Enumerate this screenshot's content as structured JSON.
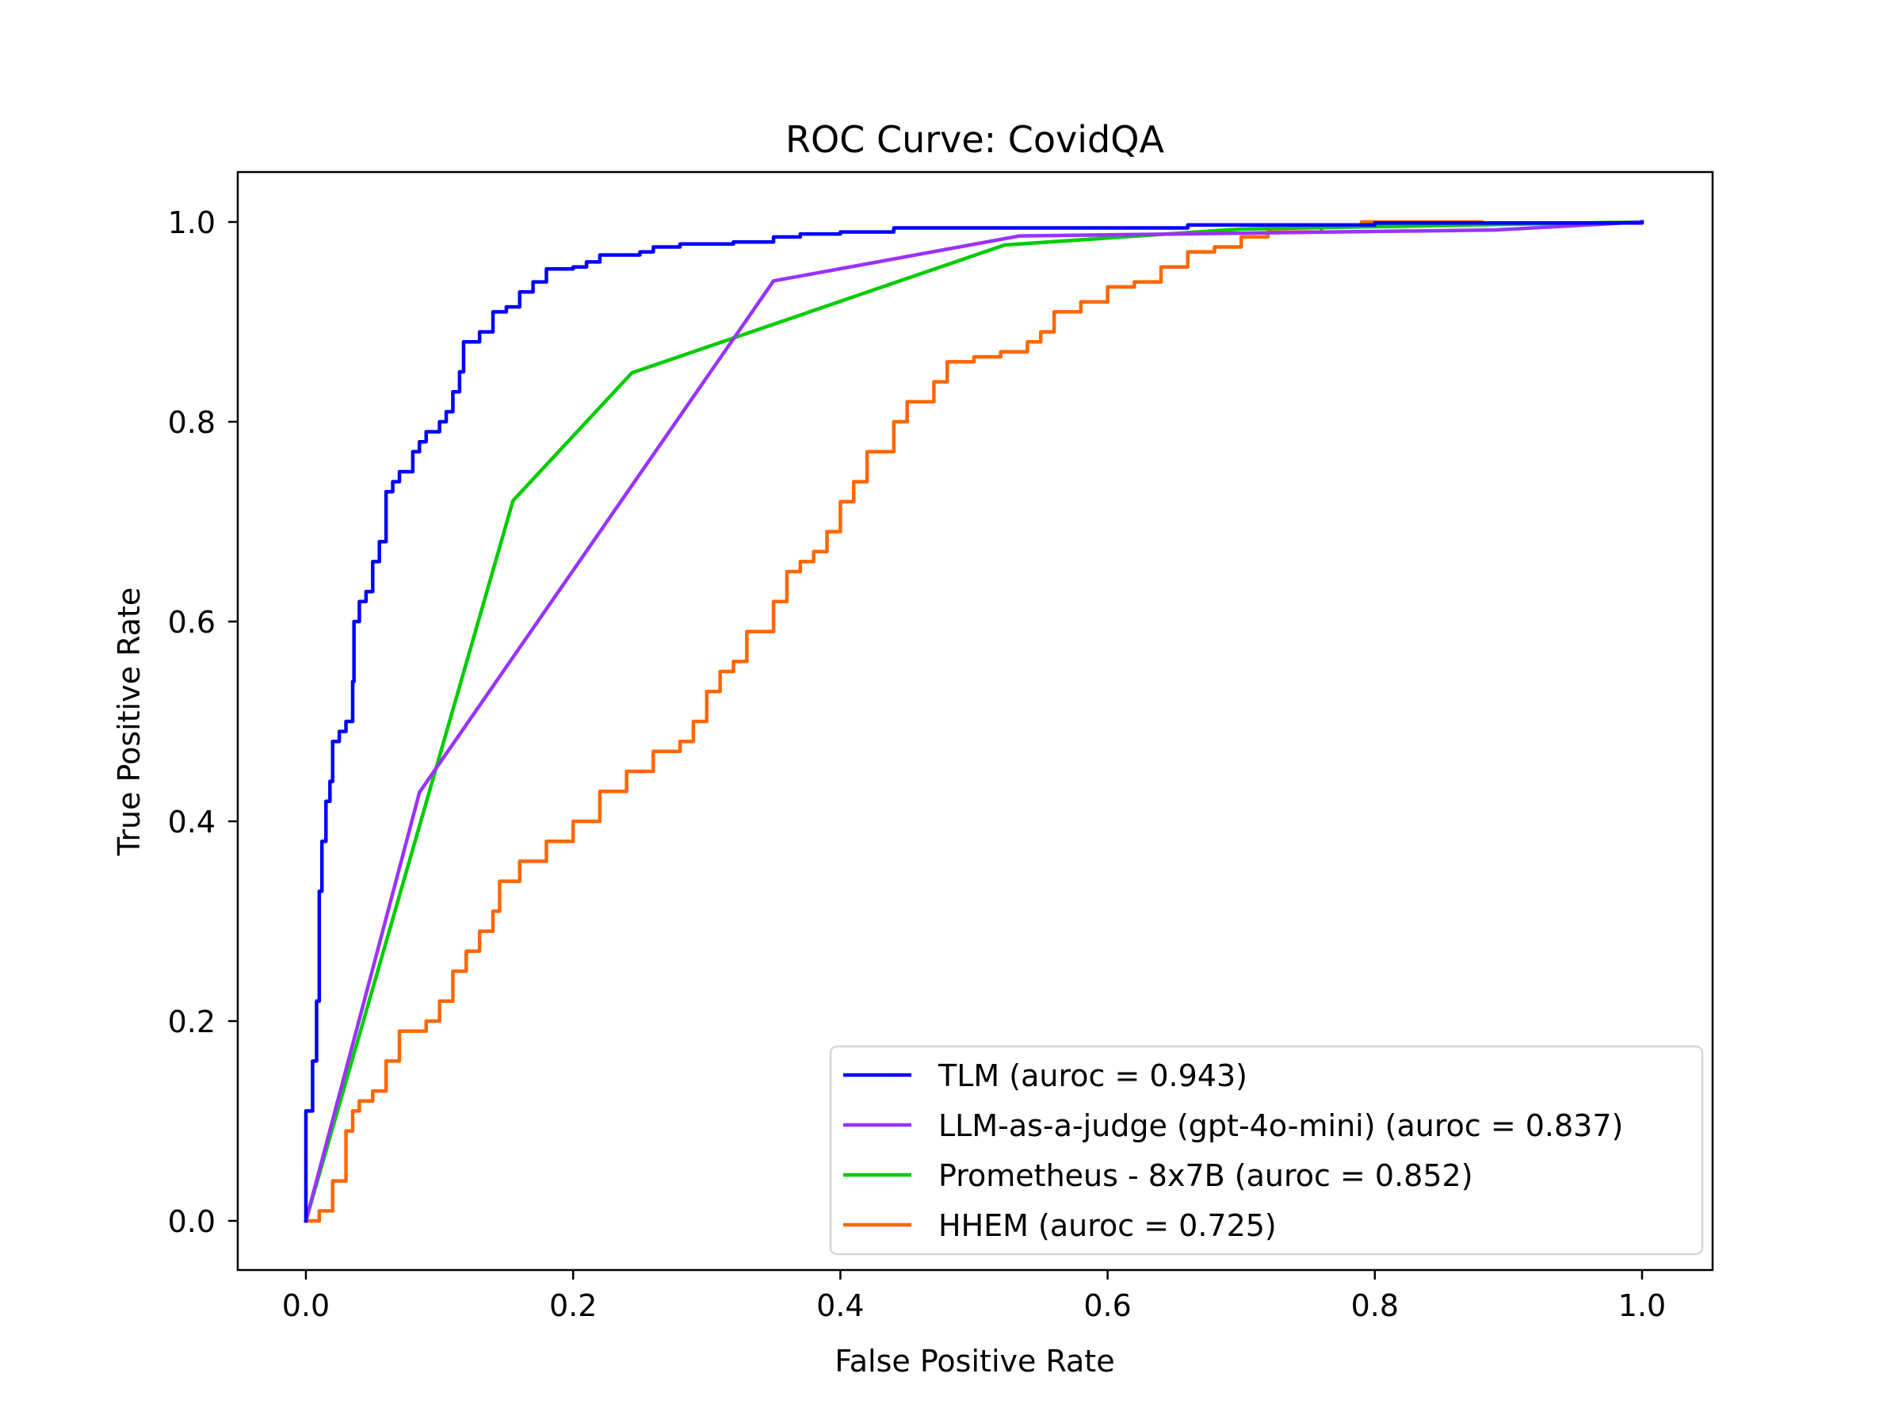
{
  "chart_data": {
    "type": "line",
    "title": "ROC Curve: CovidQA",
    "xlabel": "False Positive Rate",
    "ylabel": "True Positive Rate",
    "xlim": [
      -0.05,
      1.05
    ],
    "ylim": [
      -0.05,
      1.05
    ],
    "xticks": [
      0.0,
      0.2,
      0.4,
      0.6,
      0.8,
      1.0
    ],
    "xtick_labels": [
      "0.0",
      "0.2",
      "0.4",
      "0.6",
      "0.8",
      "1.0"
    ],
    "yticks": [
      0.0,
      0.2,
      0.4,
      0.6,
      0.8,
      1.0
    ],
    "ytick_labels": [
      "0.0",
      "0.2",
      "0.4",
      "0.6",
      "0.8",
      "1.0"
    ],
    "grid": false,
    "legend_position": "lower right",
    "series": [
      {
        "name": "TLM (auroc = 0.943)",
        "auroc": 0.943,
        "color": "#0000ff",
        "step": true,
        "x": [
          0,
          0,
          0.005,
          0.005,
          0.008,
          0.01,
          0.012,
          0.015,
          0.018,
          0.02,
          0.025,
          0.03,
          0.035,
          0.036,
          0.04,
          0.045,
          0.05,
          0.055,
          0.06,
          0.06,
          0.065,
          0.07,
          0.08,
          0.085,
          0.09,
          0.1,
          0.105,
          0.11,
          0.115,
          0.118,
          0.13,
          0.14,
          0.15,
          0.16,
          0.17,
          0.18,
          0.2,
          0.21,
          0.22,
          0.25,
          0.26,
          0.28,
          0.32,
          0.35,
          0.37,
          0.4,
          0.44,
          0.66,
          0.8,
          1.0
        ],
        "y": [
          0,
          0.11,
          0.115,
          0.16,
          0.22,
          0.33,
          0.38,
          0.42,
          0.44,
          0.48,
          0.49,
          0.5,
          0.54,
          0.6,
          0.62,
          0.63,
          0.66,
          0.68,
          0.68,
          0.73,
          0.74,
          0.75,
          0.77,
          0.78,
          0.79,
          0.8,
          0.81,
          0.83,
          0.85,
          0.88,
          0.89,
          0.91,
          0.915,
          0.93,
          0.94,
          0.953,
          0.955,
          0.96,
          0.967,
          0.97,
          0.975,
          0.978,
          0.98,
          0.985,
          0.988,
          0.99,
          0.994,
          0.997,
          0.999,
          1.0
        ]
      },
      {
        "name": "LLM-as-a-judge (gpt-4o-mini) (auroc = 0.837)",
        "auroc": 0.837,
        "color": "#9933ff",
        "step": false,
        "x": [
          0,
          0.085,
          0.35,
          0.534,
          0.89,
          1.0
        ],
        "y": [
          0,
          0.429,
          0.941,
          0.986,
          0.992,
          1.0
        ]
      },
      {
        "name": "Prometheus - 8x7B (auroc = 0.852)",
        "auroc": 0.852,
        "color": "#00cc00",
        "step": false,
        "x": [
          0,
          0.155,
          0.244,
          0.523,
          0.7,
          1.0
        ],
        "y": [
          0,
          0.721,
          0.849,
          0.977,
          0.993,
          1.0
        ]
      },
      {
        "name": "HHEM (auroc = 0.725)",
        "auroc": 0.725,
        "color": "#ff6600",
        "step": true,
        "x": [
          0,
          0.01,
          0.02,
          0.03,
          0.035,
          0.04,
          0.05,
          0.06,
          0.07,
          0.09,
          0.1,
          0.11,
          0.12,
          0.13,
          0.14,
          0.145,
          0.16,
          0.18,
          0.2,
          0.22,
          0.24,
          0.26,
          0.28,
          0.29,
          0.3,
          0.31,
          0.32,
          0.33,
          0.35,
          0.36,
          0.37,
          0.38,
          0.39,
          0.4,
          0.41,
          0.42,
          0.44,
          0.45,
          0.47,
          0.48,
          0.5,
          0.52,
          0.54,
          0.55,
          0.56,
          0.58,
          0.6,
          0.62,
          0.64,
          0.66,
          0.68,
          0.7,
          0.72,
          0.76,
          0.79,
          0.88
        ],
        "y": [
          0,
          0.01,
          0.04,
          0.09,
          0.11,
          0.12,
          0.13,
          0.16,
          0.19,
          0.2,
          0.22,
          0.25,
          0.27,
          0.29,
          0.31,
          0.34,
          0.36,
          0.38,
          0.4,
          0.43,
          0.45,
          0.47,
          0.48,
          0.5,
          0.53,
          0.55,
          0.56,
          0.59,
          0.62,
          0.65,
          0.66,
          0.67,
          0.69,
          0.72,
          0.74,
          0.77,
          0.8,
          0.82,
          0.84,
          0.86,
          0.865,
          0.87,
          0.88,
          0.89,
          0.91,
          0.92,
          0.935,
          0.94,
          0.955,
          0.97,
          0.975,
          0.985,
          0.99,
          0.997,
          1.0,
          1.0
        ]
      }
    ]
  },
  "legend": {
    "items": [
      {
        "label": "TLM (auroc = 0.943)",
        "color": "#0000ff"
      },
      {
        "label": "LLM-as-a-judge (gpt-4o-mini) (auroc = 0.837)",
        "color": "#9933ff"
      },
      {
        "label": "Prometheus - 8x7B (auroc = 0.852)",
        "color": "#00cc00"
      },
      {
        "label": "HHEM (auroc = 0.725)",
        "color": "#ff6600"
      }
    ]
  }
}
